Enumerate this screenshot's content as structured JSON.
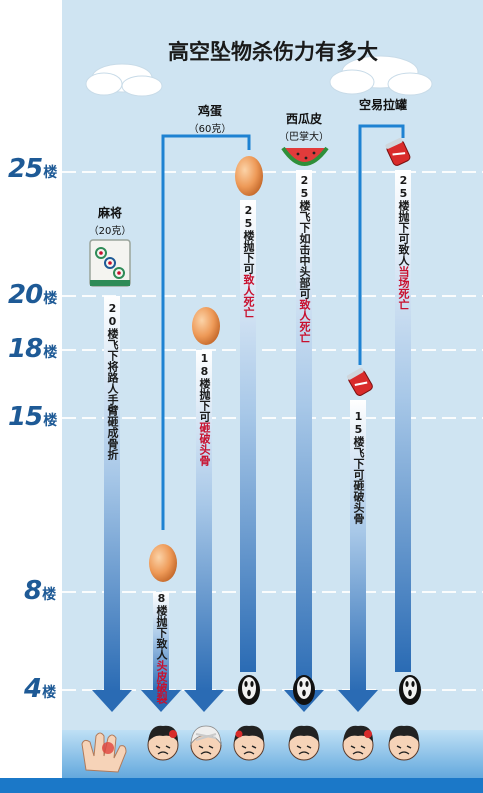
{
  "title": "高空坠物杀伤力有多大",
  "floors": [
    {
      "num": "25",
      "unit": "楼"
    },
    {
      "num": "20",
      "unit": "楼"
    },
    {
      "num": "18",
      "unit": "楼"
    },
    {
      "num": "15",
      "unit": "楼"
    },
    {
      "num": "8",
      "unit": "楼"
    },
    {
      "num": "4",
      "unit": "楼"
    }
  ],
  "objects": {
    "mahjong": {
      "name": "麻将",
      "weight": "（20克）"
    },
    "egg": {
      "name": "鸡蛋",
      "weight": "（60克）"
    },
    "watermelon": {
      "name": "西瓜皮",
      "weight": "（巴掌大）"
    },
    "can": {
      "name": "空易拉罐"
    }
  },
  "effects": {
    "mahjong_20": {
      "pre": "20楼飞下将路人手臂砸成骨折",
      "hl": ""
    },
    "egg_8": {
      "pre": "8楼抛下致人",
      "hl": "头皮破裂"
    },
    "egg_18": {
      "pre": "18楼抛下可",
      "hl": "砸破头骨"
    },
    "egg_25": {
      "pre": "25楼抛下可",
      "hl": "致人死亡"
    },
    "watermelon_25": {
      "pre": "25楼飞下如击中头部可",
      "hl": "致人死亡"
    },
    "can_15": {
      "pre": "15楼飞下可砸破头骨",
      "hl": ""
    },
    "can_25": {
      "pre": "25楼抛下可致人",
      "hl": "当场死亡"
    }
  },
  "icons": {
    "egg": "egg-icon",
    "mahjong": "mahjong-tile-icon",
    "watermelon": "watermelon-slice-icon",
    "can": "crushed-can-icon",
    "ghost": "scream-ghost-icon",
    "head": "injured-head-icon",
    "hand": "injured-hand-icon"
  },
  "colors": {
    "background": "#cfe4f2",
    "floor_label": "#1e5a96",
    "highlight": "#c8102e",
    "arrow_top": "#ffffff",
    "arrow_bottom": "#2a6bb4",
    "bottom_band": "#1b78c8"
  }
}
